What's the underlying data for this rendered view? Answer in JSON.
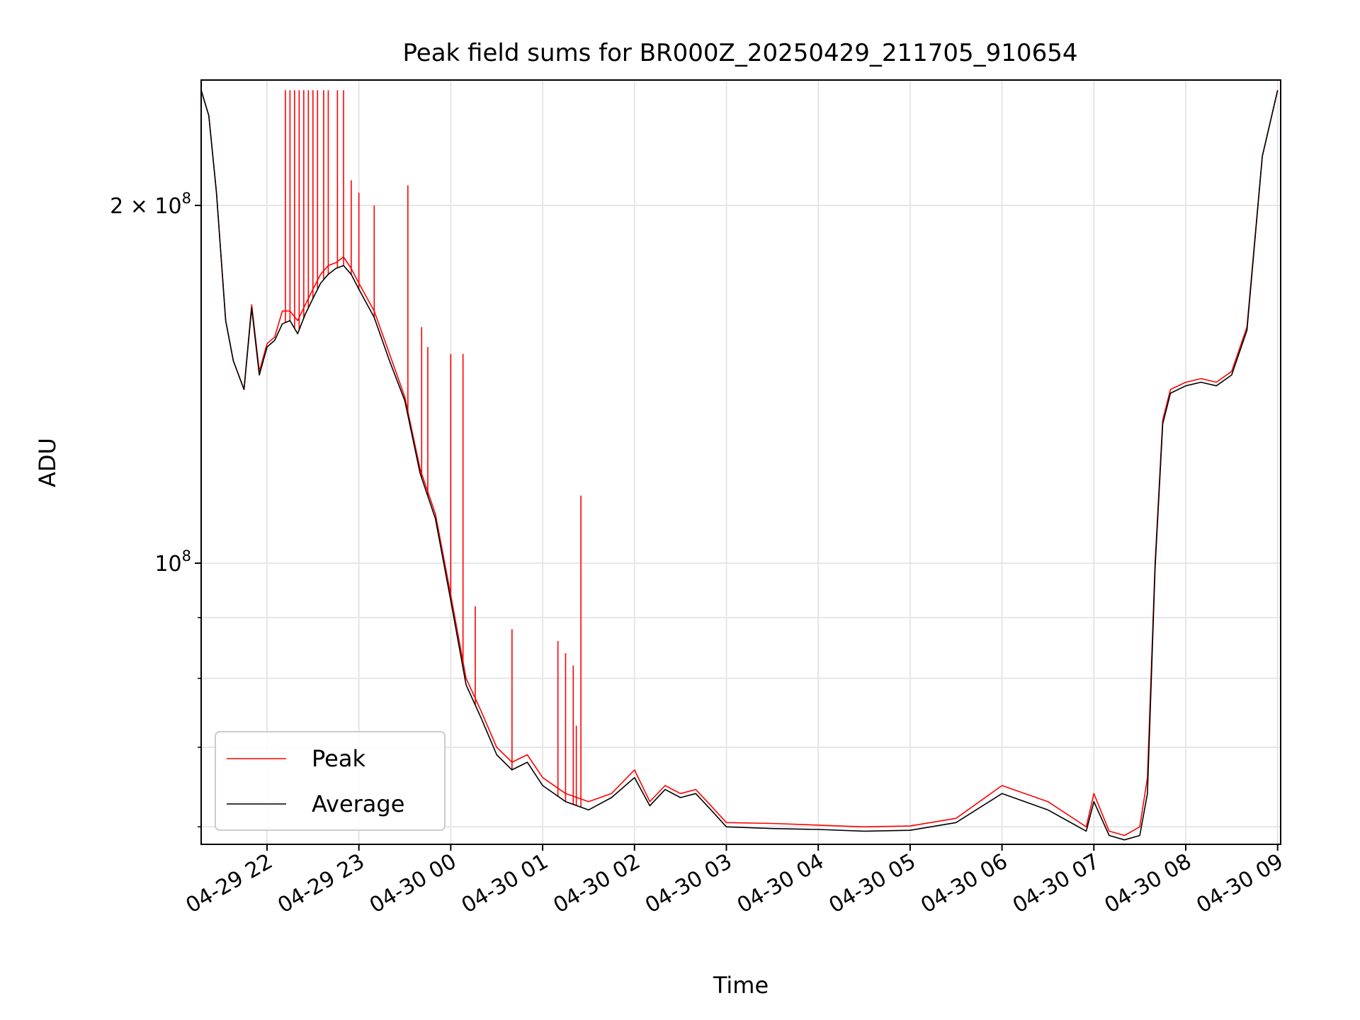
{
  "chart_data": {
    "type": "line",
    "title": "Peak field sums for BR000Z_20250429_211705_910654",
    "xlabel": "Time",
    "ylabel": "ADU",
    "y_scale": "log",
    "ylim": [
      58000000,
      255000000
    ],
    "xlim": [
      "2025-04-29 21:17",
      "2025-04-30 09:02"
    ],
    "grid": true,
    "legend_position": "lower-left",
    "x_ticks": [
      {
        "t": "2025-04-29 22:00",
        "label": "04-29 22"
      },
      {
        "t": "2025-04-29 23:00",
        "label": "04-29 23"
      },
      {
        "t": "2025-04-30 00:00",
        "label": "04-30 00"
      },
      {
        "t": "2025-04-30 01:00",
        "label": "04-30 01"
      },
      {
        "t": "2025-04-30 02:00",
        "label": "04-30 02"
      },
      {
        "t": "2025-04-30 03:00",
        "label": "04-30 03"
      },
      {
        "t": "2025-04-30 04:00",
        "label": "04-30 04"
      },
      {
        "t": "2025-04-30 05:00",
        "label": "04-30 05"
      },
      {
        "t": "2025-04-30 06:00",
        "label": "04-30 06"
      },
      {
        "t": "2025-04-30 07:00",
        "label": "04-30 07"
      },
      {
        "t": "2025-04-30 08:00",
        "label": "04-30 08"
      },
      {
        "t": "2025-04-30 09:00",
        "label": "04-30 09"
      }
    ],
    "y_ticks": [
      {
        "value": 100000000,
        "label_base": "10",
        "label_exp": "8"
      },
      {
        "value": 200000000,
        "label_base": "2 × 10",
        "label_exp": "8"
      }
    ],
    "y_minor_ticks": [
      60000000,
      70000000,
      80000000,
      90000000
    ],
    "series": [
      {
        "name": "Peak",
        "color": "#ff0000",
        "x": [
          "2025-04-29 21:17",
          "2025-04-29 21:22",
          "2025-04-29 21:27",
          "2025-04-29 21:33",
          "2025-04-29 21:38",
          "2025-04-29 21:45",
          "2025-04-29 21:50",
          "2025-04-29 21:55",
          "2025-04-29 22:00",
          "2025-04-29 22:05",
          "2025-04-29 22:10",
          "2025-04-29 22:15",
          "2025-04-29 22:20",
          "2025-04-29 22:25",
          "2025-04-29 22:30",
          "2025-04-29 22:35",
          "2025-04-29 22:40",
          "2025-04-29 22:45",
          "2025-04-29 22:50",
          "2025-04-29 22:55",
          "2025-04-29 23:00",
          "2025-04-29 23:10",
          "2025-04-29 23:20",
          "2025-04-29 23:30",
          "2025-04-29 23:40",
          "2025-04-29 23:50",
          "2025-04-30 00:00",
          "2025-04-30 00:10",
          "2025-04-30 00:20",
          "2025-04-30 00:30",
          "2025-04-30 00:40",
          "2025-04-30 00:50",
          "2025-04-30 01:00",
          "2025-04-30 01:15",
          "2025-04-30 01:30",
          "2025-04-30 01:45",
          "2025-04-30 02:00",
          "2025-04-30 02:10",
          "2025-04-30 02:20",
          "2025-04-30 02:30",
          "2025-04-30 02:40",
          "2025-04-30 02:50",
          "2025-04-30 03:00",
          "2025-04-30 03:30",
          "2025-04-30 04:00",
          "2025-04-30 04:30",
          "2025-04-30 05:00",
          "2025-04-30 05:30",
          "2025-04-30 06:00",
          "2025-04-30 06:30",
          "2025-04-30 06:55",
          "2025-04-30 07:00",
          "2025-04-30 07:10",
          "2025-04-30 07:20",
          "2025-04-30 07:30",
          "2025-04-30 07:35",
          "2025-04-30 07:40",
          "2025-04-30 07:45",
          "2025-04-30 07:50",
          "2025-04-30 08:00",
          "2025-04-30 08:10",
          "2025-04-30 08:20",
          "2025-04-30 08:30",
          "2025-04-30 08:40",
          "2025-04-30 08:50",
          "2025-04-30 09:00"
        ],
        "values": [
          250000000,
          238000000,
          205000000,
          160000000,
          148000000,
          140000000,
          165000000,
          145000000,
          153000000,
          155000000,
          163000000,
          163000000,
          160000000,
          165000000,
          170000000,
          175000000,
          178000000,
          179000000,
          181000000,
          177000000,
          172000000,
          163000000,
          150000000,
          138000000,
          120000000,
          110000000,
          94000000,
          80000000,
          75000000,
          70000000,
          68000000,
          69000000,
          66000000,
          64000000,
          63000000,
          64000000,
          67000000,
          63000000,
          65000000,
          64000000,
          64500000,
          62500000,
          60500000,
          60400000,
          60200000,
          60000000,
          60100000,
          61000000,
          65000000,
          63000000,
          60000000,
          64000000,
          59500000,
          59000000,
          60000000,
          66000000,
          100000000,
          132000000,
          140000000,
          142000000,
          143000000,
          142000000,
          145000000,
          158000000,
          220000000,
          250000000
        ]
      },
      {
        "name": "Average",
        "color": "#000000",
        "x": [
          "2025-04-29 21:17",
          "2025-04-29 21:22",
          "2025-04-29 21:27",
          "2025-04-29 21:33",
          "2025-04-29 21:38",
          "2025-04-29 21:45",
          "2025-04-29 21:50",
          "2025-04-29 21:55",
          "2025-04-29 22:00",
          "2025-04-29 22:05",
          "2025-04-29 22:10",
          "2025-04-29 22:15",
          "2025-04-29 22:20",
          "2025-04-29 22:25",
          "2025-04-29 22:30",
          "2025-04-29 22:35",
          "2025-04-29 22:40",
          "2025-04-29 22:45",
          "2025-04-29 22:50",
          "2025-04-29 22:55",
          "2025-04-29 23:00",
          "2025-04-29 23:10",
          "2025-04-29 23:20",
          "2025-04-29 23:30",
          "2025-04-29 23:40",
          "2025-04-29 23:50",
          "2025-04-30 00:00",
          "2025-04-30 00:10",
          "2025-04-30 00:20",
          "2025-04-30 00:30",
          "2025-04-30 00:40",
          "2025-04-30 00:50",
          "2025-04-30 01:00",
          "2025-04-30 01:15",
          "2025-04-30 01:30",
          "2025-04-30 01:45",
          "2025-04-30 02:00",
          "2025-04-30 02:10",
          "2025-04-30 02:20",
          "2025-04-30 02:30",
          "2025-04-30 02:40",
          "2025-04-30 02:50",
          "2025-04-30 03:00",
          "2025-04-30 03:30",
          "2025-04-30 04:00",
          "2025-04-30 04:30",
          "2025-04-30 05:00",
          "2025-04-30 05:30",
          "2025-04-30 06:00",
          "2025-04-30 06:30",
          "2025-04-30 06:55",
          "2025-04-30 07:00",
          "2025-04-30 07:10",
          "2025-04-30 07:20",
          "2025-04-30 07:30",
          "2025-04-30 07:35",
          "2025-04-30 07:40",
          "2025-04-30 07:45",
          "2025-04-30 07:50",
          "2025-04-30 08:00",
          "2025-04-30 08:10",
          "2025-04-30 08:20",
          "2025-04-30 08:30",
          "2025-04-30 08:40",
          "2025-04-30 08:50",
          "2025-04-30 09:00"
        ],
        "values": [
          250000000,
          238000000,
          205000000,
          160000000,
          148000000,
          140000000,
          164000000,
          144000000,
          152000000,
          154000000,
          159000000,
          160000000,
          156000000,
          162000000,
          167000000,
          172000000,
          175000000,
          177000000,
          178000000,
          175000000,
          170000000,
          161000000,
          148000000,
          137000000,
          119000000,
          109000000,
          93000000,
          79000000,
          74000000,
          69000000,
          67000000,
          68000000,
          65000000,
          63000000,
          62000000,
          63500000,
          66000000,
          62500000,
          64500000,
          63500000,
          64000000,
          62000000,
          60000000,
          59800000,
          59700000,
          59500000,
          59600000,
          60500000,
          64000000,
          62000000,
          59500000,
          63000000,
          59000000,
          58500000,
          59000000,
          64000000,
          99000000,
          131000000,
          139000000,
          141000000,
          142000000,
          141000000,
          144000000,
          157000000,
          220000000,
          250000000
        ]
      }
    ],
    "spikes": [
      {
        "series": "Peak",
        "t": [
          "2025-04-29 22:12",
          "2025-04-29 22:15",
          "2025-04-29 22:18",
          "2025-04-29 22:21",
          "2025-04-29 22:24",
          "2025-04-29 22:27",
          "2025-04-29 22:30",
          "2025-04-29 22:33",
          "2025-04-29 22:37",
          "2025-04-29 22:40",
          "2025-04-29 22:46",
          "2025-04-29 22:50",
          "2025-04-29 22:55",
          "2025-04-29 23:00",
          "2025-04-29 23:10",
          "2025-04-29 23:32",
          "2025-04-29 23:41",
          "2025-04-29 23:45",
          "2025-04-30 00:00",
          "2025-04-30 00:08",
          "2025-04-30 00:16",
          "2025-04-30 00:40",
          "2025-04-30 01:10",
          "2025-04-30 01:15",
          "2025-04-30 01:20",
          "2025-04-30 01:22",
          "2025-04-30 01:25"
        ],
        "values": [
          250000000,
          250000000,
          250000000,
          250000000,
          250000000,
          250000000,
          250000000,
          250000000,
          250000000,
          250000000,
          250000000,
          250000000,
          210000000,
          205000000,
          200000000,
          208000000,
          158000000,
          152000000,
          150000000,
          150000000,
          92000000,
          88000000,
          86000000,
          84000000,
          82000000,
          73000000,
          114000000
        ]
      }
    ],
    "legend": [
      {
        "name": "Peak",
        "color": "#ff0000"
      },
      {
        "name": "Average",
        "color": "#000000"
      }
    ]
  }
}
